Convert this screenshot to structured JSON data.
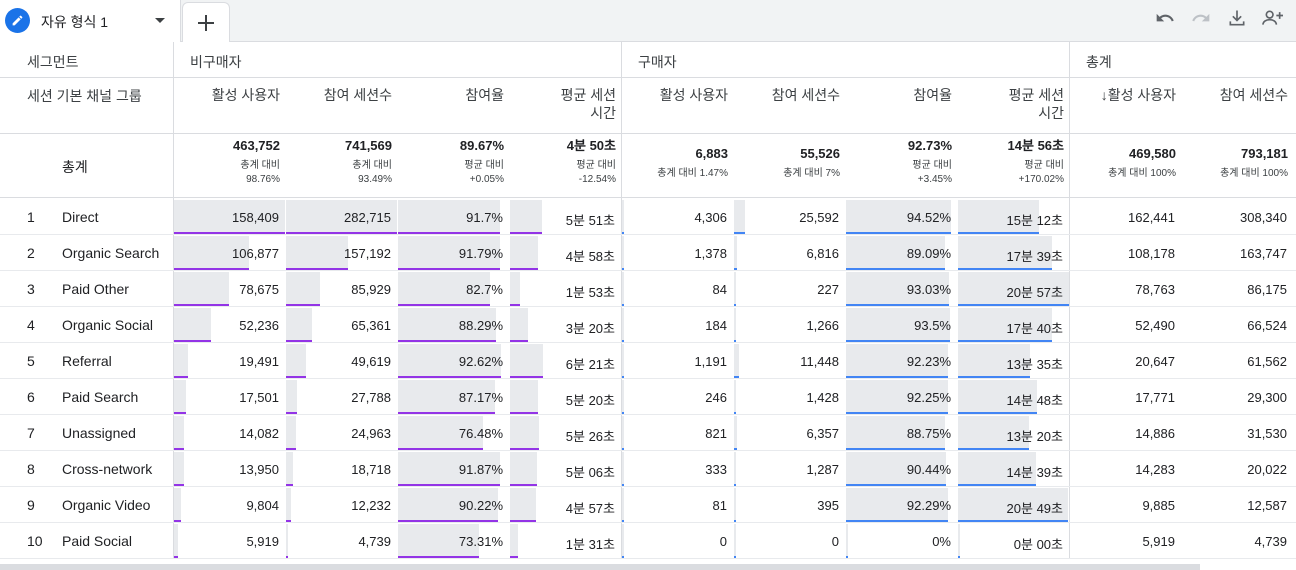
{
  "tab": {
    "title": "자유 형식 1",
    "add_label": "+"
  },
  "toolbar": {
    "icons": [
      "undo-icon",
      "redo-icon",
      "download-icon",
      "share-user-icon"
    ]
  },
  "table": {
    "dimension_header": "세그먼트",
    "dimension_sub_header": "세션 기본 채널 그룹",
    "groups": [
      {
        "label": "비구매자"
      },
      {
        "label": "구매자"
      },
      {
        "label": "총계"
      }
    ],
    "columns": [
      {
        "label": "활성 사용자"
      },
      {
        "label": "참여 세션수"
      },
      {
        "label": "참여율"
      },
      {
        "label": "평균 세션\n시간"
      },
      {
        "label": "활성 사용자"
      },
      {
        "label": "참여 세션수"
      },
      {
        "label": "참여율"
      },
      {
        "label": "평균 세션\n시간"
      },
      {
        "label": "↓활성 사용자"
      },
      {
        "label": "참여 세션수"
      }
    ],
    "total": {
      "label": "총계",
      "cells": [
        {
          "value": "463,752",
          "sub1": "총계 대비",
          "sub2": "98.76%"
        },
        {
          "value": "741,569",
          "sub1": "총계 대비",
          "sub2": "93.49%"
        },
        {
          "value": "89.67%",
          "sub1": "평균 대비",
          "sub2": "+0.05%"
        },
        {
          "value": "4분 50초",
          "sub1": "평균 대비",
          "sub2": "-12.54%"
        },
        {
          "value": "6,883",
          "sub1": "총계 대비 1.47%",
          "sub2": ""
        },
        {
          "value": "55,526",
          "sub1": "총계 대비 7%",
          "sub2": ""
        },
        {
          "value": "92.73%",
          "sub1": "평균 대비",
          "sub2": "+3.45%"
        },
        {
          "value": "14분 56초",
          "sub1": "평균 대비",
          "sub2": "+170.02%"
        },
        {
          "value": "469,580",
          "sub1": "총계 대비 100%",
          "sub2": ""
        },
        {
          "value": "793,181",
          "sub1": "총계 대비 100%",
          "sub2": ""
        }
      ]
    },
    "rows": [
      {
        "num": "1",
        "channel": "Direct",
        "values": [
          "158,409",
          "282,715",
          "91.7%",
          "5분 51초",
          "4,306",
          "25,592",
          "94.52%",
          "15분 12초",
          "162,441",
          "308,340"
        ],
        "fractions": [
          1.0,
          1.0,
          0.917,
          0.29,
          0.012,
          0.1,
          0.945,
          0.73
        ]
      },
      {
        "num": "2",
        "channel": "Organic Search",
        "values": [
          "106,877",
          "157,192",
          "91.79%",
          "4분 58초",
          "1,378",
          "6,816",
          "89.09%",
          "17분 39초",
          "108,178",
          "163,747"
        ],
        "fractions": [
          0.675,
          0.556,
          0.918,
          0.25,
          0.004,
          0.027,
          0.891,
          0.85
        ]
      },
      {
        "num": "3",
        "channel": "Paid Other",
        "values": [
          "78,675",
          "85,929",
          "82.7%",
          "1분 53초",
          "84",
          "227",
          "93.03%",
          "20분 57초",
          "78,763",
          "86,175"
        ],
        "fractions": [
          0.497,
          0.304,
          0.827,
          0.09,
          0.0,
          0.001,
          0.93,
          1.0
        ]
      },
      {
        "num": "4",
        "channel": "Organic Social",
        "values": [
          "52,236",
          "65,361",
          "88.29%",
          "3분 20초",
          "184",
          "1,266",
          "93.5%",
          "17분 40초",
          "52,490",
          "66,524"
        ],
        "fractions": [
          0.33,
          0.231,
          0.883,
          0.16,
          0.0,
          0.005,
          0.935,
          0.85
        ]
      },
      {
        "num": "5",
        "channel": "Referral",
        "values": [
          "19,491",
          "49,619",
          "92.62%",
          "6분 21초",
          "1,191",
          "11,448",
          "92.23%",
          "13분 35초",
          "20,647",
          "61,562"
        ],
        "fractions": [
          0.123,
          0.176,
          0.926,
          0.3,
          0.004,
          0.045,
          0.922,
          0.65
        ]
      },
      {
        "num": "6",
        "channel": "Paid Search",
        "values": [
          "17,501",
          "27,788",
          "87.17%",
          "5분 20초",
          "246",
          "1,428",
          "92.25%",
          "14분 48초",
          "17,771",
          "29,300"
        ],
        "fractions": [
          0.11,
          0.098,
          0.872,
          0.25,
          0.001,
          0.006,
          0.923,
          0.71
        ]
      },
      {
        "num": "7",
        "channel": "Unassigned",
        "values": [
          "14,082",
          "24,963",
          "76.48%",
          "5분 26초",
          "821",
          "6,357",
          "88.75%",
          "13분 20초",
          "14,886",
          "31,530"
        ],
        "fractions": [
          0.089,
          0.088,
          0.765,
          0.26,
          0.003,
          0.025,
          0.888,
          0.64
        ]
      },
      {
        "num": "8",
        "channel": "Cross-network",
        "values": [
          "13,950",
          "18,718",
          "91.87%",
          "5분 06초",
          "333",
          "1,287",
          "90.44%",
          "14분 39초",
          "14,283",
          "20,022"
        ],
        "fractions": [
          0.088,
          0.066,
          0.919,
          0.24,
          0.001,
          0.005,
          0.904,
          0.7
        ]
      },
      {
        "num": "9",
        "channel": "Organic Video",
        "values": [
          "9,804",
          "12,232",
          "90.22%",
          "4분 57초",
          "81",
          "395",
          "92.29%",
          "20분 49초",
          "9,885",
          "12,587"
        ],
        "fractions": [
          0.062,
          0.043,
          0.902,
          0.23,
          0.0,
          0.002,
          0.923,
          0.99
        ]
      },
      {
        "num": "10",
        "channel": "Paid Social",
        "values": [
          "5,919",
          "4,739",
          "73.31%",
          "1분 31초",
          "0",
          "0",
          "0%",
          "0분 00초",
          "5,919",
          "4,739"
        ],
        "fractions": [
          0.037,
          0.017,
          0.733,
          0.07,
          0.0,
          0.0,
          0.0,
          0.0
        ]
      }
    ]
  }
}
